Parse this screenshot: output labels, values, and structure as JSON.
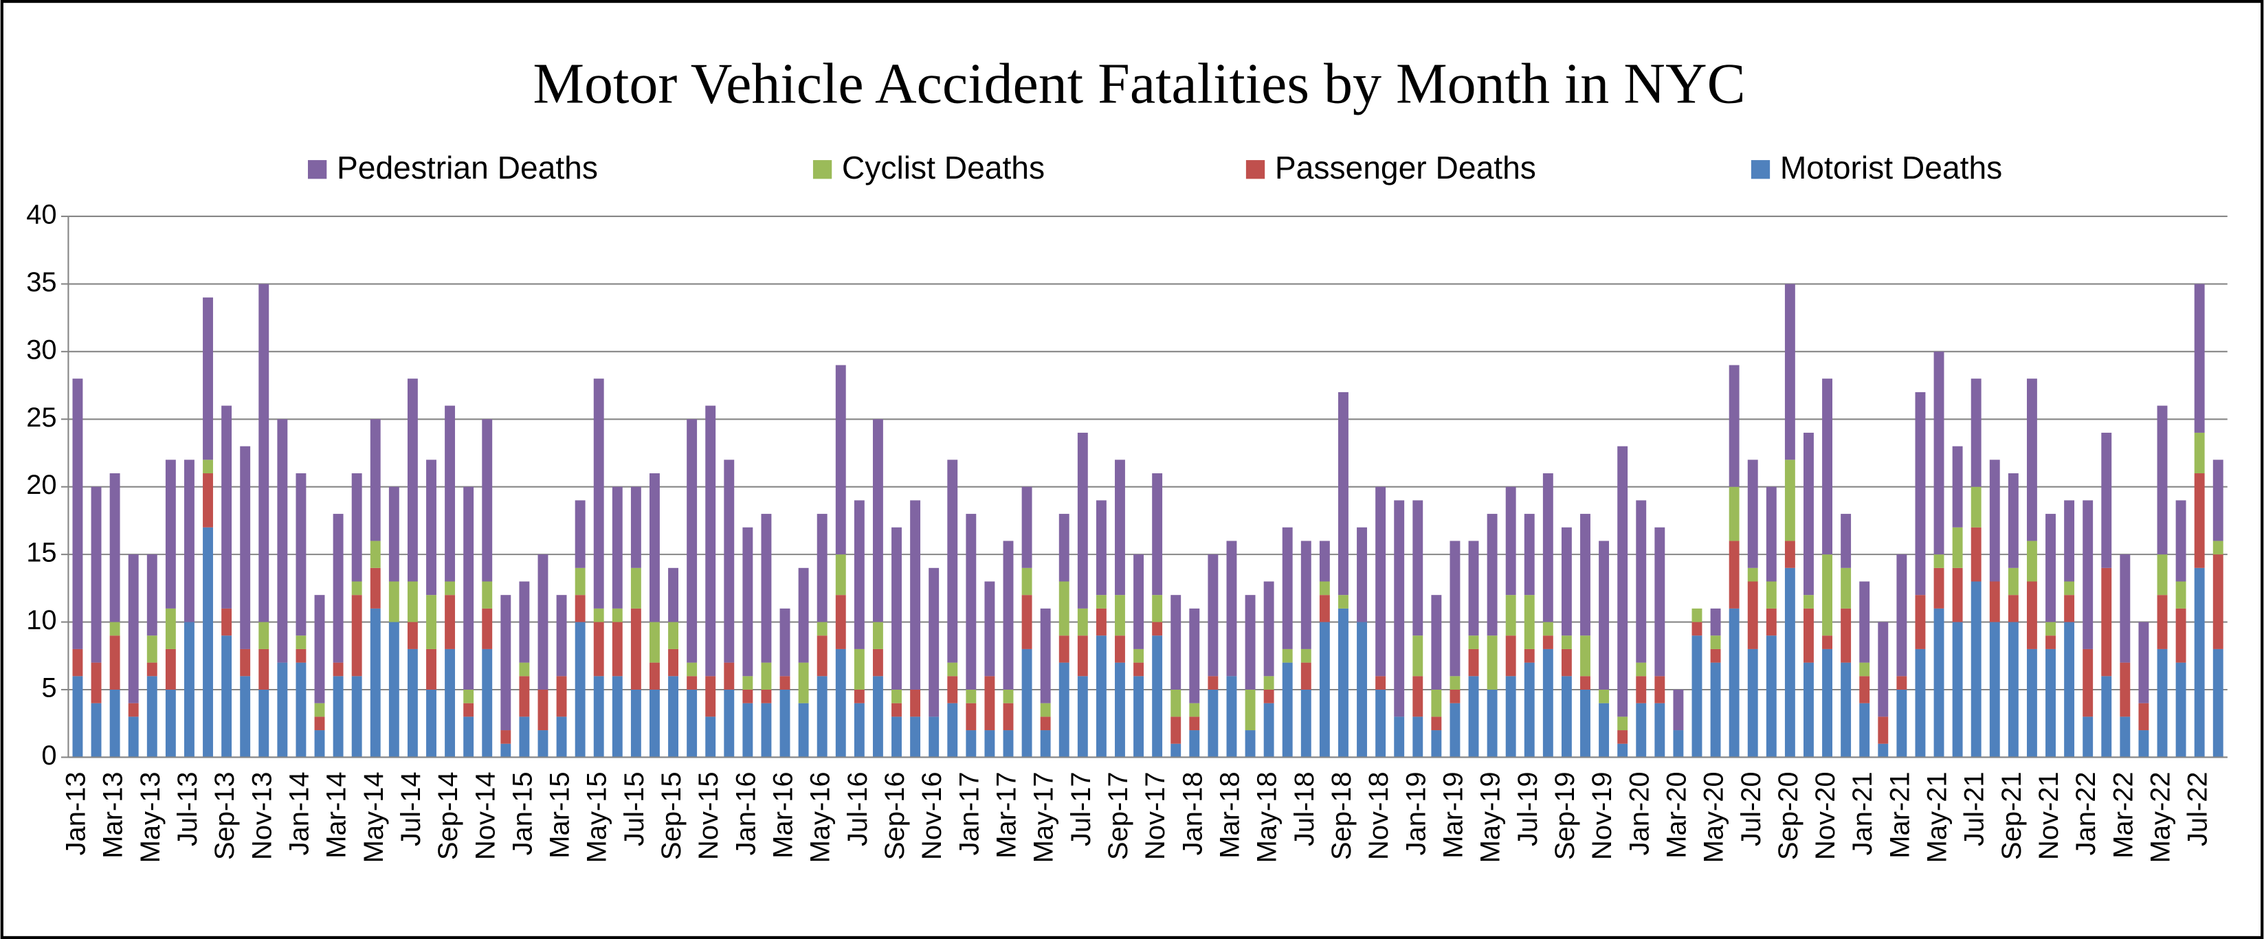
{
  "chart_data": {
    "type": "stacked_bar",
    "title": "Motor Vehicle Accident Fatalities by Month in NYC",
    "categories": [
      "Jan-13",
      null,
      "Mar-13",
      null,
      "May-13",
      null,
      "Jul-13",
      null,
      "Sep-13",
      null,
      "Nov-13",
      null,
      "Jan-14",
      null,
      "Mar-14",
      null,
      "May-14",
      null,
      "Jul-14",
      null,
      "Sep-14",
      null,
      "Nov-14",
      null,
      "Jan-15",
      null,
      "Mar-15",
      null,
      "May-15",
      null,
      "Jul-15",
      null,
      "Sep-15",
      null,
      "Nov-15",
      null,
      "Jan-16",
      null,
      "Mar-16",
      null,
      "May-16",
      null,
      "Jul-16",
      null,
      "Sep-16",
      null,
      "Nov-16",
      null,
      "Jan-17",
      null,
      "Mar-17",
      null,
      "May-17",
      null,
      "Jul-17",
      null,
      "Sep-17",
      null,
      "Nov-17",
      null,
      "Jan-18",
      null,
      "Mar-18",
      null,
      "May-18",
      null,
      "Jul-18",
      null,
      "Sep-18",
      null,
      "Nov-18",
      null,
      "Jan-19",
      null,
      "Mar-19",
      null,
      "May-19",
      null,
      "Jul-19",
      null,
      "Sep-19",
      null,
      "Nov-19",
      null,
      "Jan-20",
      null,
      "Mar-20",
      null,
      "May-20",
      null,
      "Jul-20",
      null,
      "Sep-20",
      null,
      "Nov-20",
      null,
      "Jan-21",
      null,
      "Mar-21",
      null,
      "May-21",
      null,
      "Jul-21",
      null,
      "Sep-21",
      null,
      "Nov-21",
      null,
      "Jan-22",
      null,
      "Mar-22",
      null,
      "May-22",
      null,
      "Jul-22",
      null
    ],
    "series": [
      {
        "name": "Pedestrian Deaths",
        "color": "#8064a2",
        "values": [
          20,
          13,
          11,
          11,
          6,
          11,
          12,
          12,
          15,
          15,
          25,
          18,
          12,
          8,
          11,
          8,
          9,
          7,
          15,
          10,
          13,
          15,
          12,
          10,
          6,
          10,
          6,
          5,
          17,
          9,
          6,
          11,
          4,
          18,
          20,
          15,
          11,
          11,
          5,
          7,
          8,
          14,
          11,
          15,
          12,
          14,
          11,
          15,
          13,
          7,
          11,
          6,
          7,
          5,
          13,
          7,
          10,
          7,
          9,
          7,
          7,
          9,
          10,
          7,
          7,
          9,
          8,
          3,
          15,
          7,
          14,
          16,
          10,
          7,
          10,
          7,
          9,
          8,
          6,
          11,
          8,
          9,
          11,
          20,
          12,
          11,
          3,
          0,
          2,
          9,
          8,
          7,
          13,
          12,
          13,
          4,
          6,
          7,
          9,
          15,
          15,
          6,
          8,
          9,
          7,
          12,
          8,
          6,
          11,
          10,
          8,
          6,
          11,
          6,
          11,
          6
        ]
      },
      {
        "name": "Cyclist Deaths",
        "color": "#9bbb59",
        "values": [
          0,
          0,
          1,
          0,
          2,
          3,
          0,
          1,
          0,
          0,
          2,
          0,
          1,
          1,
          0,
          1,
          2,
          3,
          3,
          4,
          1,
          1,
          2,
          0,
          1,
          0,
          0,
          2,
          1,
          1,
          3,
          3,
          2,
          1,
          0,
          0,
          1,
          2,
          0,
          3,
          1,
          3,
          3,
          2,
          1,
          0,
          0,
          1,
          1,
          0,
          1,
          2,
          1,
          4,
          2,
          1,
          3,
          1,
          2,
          2,
          1,
          0,
          0,
          3,
          1,
          1,
          1,
          1,
          1,
          0,
          0,
          0,
          3,
          2,
          1,
          1,
          4,
          3,
          4,
          1,
          1,
          3,
          1,
          1,
          1,
          0,
          0,
          1,
          1,
          4,
          1,
          2,
          6,
          1,
          6,
          3,
          1,
          0,
          0,
          0,
          1,
          3,
          3,
          0,
          2,
          3,
          1,
          1,
          0,
          0,
          0,
          0,
          3,
          2,
          3,
          1
        ]
      },
      {
        "name": "Passenger Deaths",
        "color": "#c0504d",
        "values": [
          2,
          3,
          4,
          1,
          1,
          3,
          0,
          4,
          2,
          2,
          3,
          0,
          1,
          1,
          1,
          6,
          3,
          0,
          2,
          3,
          4,
          1,
          3,
          1,
          3,
          3,
          3,
          2,
          4,
          4,
          6,
          2,
          2,
          1,
          3,
          2,
          1,
          1,
          1,
          0,
          3,
          4,
          1,
          2,
          1,
          2,
          0,
          2,
          2,
          4,
          2,
          4,
          1,
          2,
          3,
          2,
          2,
          1,
          1,
          2,
          1,
          1,
          0,
          0,
          1,
          0,
          2,
          2,
          0,
          0,
          1,
          0,
          3,
          1,
          1,
          2,
          0,
          3,
          1,
          1,
          2,
          1,
          0,
          1,
          2,
          2,
          0,
          1,
          1,
          5,
          5,
          2,
          2,
          4,
          1,
          4,
          2,
          2,
          1,
          4,
          3,
          4,
          4,
          3,
          2,
          5,
          1,
          2,
          5,
          8,
          4,
          2,
          4,
          4,
          7,
          7
        ]
      },
      {
        "name": "Motorist Deaths",
        "color": "#4f81bd",
        "values": [
          6,
          4,
          5,
          3,
          6,
          5,
          10,
          17,
          9,
          6,
          5,
          7,
          7,
          2,
          6,
          6,
          11,
          10,
          8,
          5,
          8,
          3,
          8,
          1,
          3,
          2,
          3,
          10,
          6,
          6,
          5,
          5,
          6,
          5,
          3,
          5,
          4,
          4,
          5,
          4,
          6,
          8,
          4,
          6,
          3,
          3,
          3,
          4,
          2,
          2,
          2,
          8,
          2,
          7,
          6,
          9,
          7,
          6,
          9,
          1,
          2,
          5,
          6,
          2,
          4,
          7,
          5,
          10,
          11,
          10,
          5,
          3,
          3,
          2,
          4,
          6,
          5,
          6,
          7,
          8,
          6,
          5,
          4,
          1,
          4,
          4,
          2,
          9,
          7,
          11,
          8,
          9,
          14,
          7,
          8,
          7,
          4,
          1,
          5,
          8,
          11,
          10,
          13,
          10,
          10,
          8,
          8,
          10,
          3,
          6,
          3,
          2,
          8,
          7,
          14,
          8
        ]
      }
    ],
    "ylim": [
      0,
      40
    ],
    "yticks": [
      0,
      5,
      10,
      15,
      20,
      25,
      30,
      35,
      40
    ],
    "grid": true,
    "legend": "top"
  }
}
